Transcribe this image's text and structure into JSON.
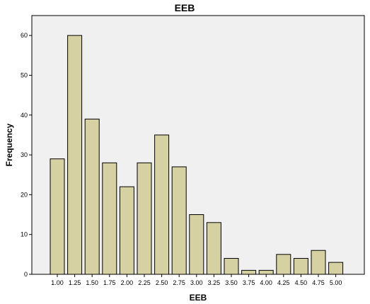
{
  "chart_data": {
    "type": "bar",
    "title": "EEB",
    "xlabel": "EEB",
    "ylabel": "Frequency",
    "categories": [
      "1.00",
      "1.25",
      "1.50",
      "1.75",
      "2.00",
      "2.25",
      "2.50",
      "2.75",
      "3.00",
      "3.25",
      "3.50",
      "3.75",
      "4.00",
      "4.25",
      "4.50",
      "4.75",
      "5.00"
    ],
    "values": [
      29,
      60,
      39,
      28,
      22,
      28,
      35,
      27,
      15,
      13,
      4,
      1,
      1,
      5,
      4,
      6,
      3
    ],
    "ylim": [
      0,
      65
    ],
    "yticks": [
      0,
      10,
      20,
      30,
      40,
      50,
      60
    ],
    "grid": false,
    "colors": {
      "bar_fill": "#d6d1a3",
      "bar_stroke": "#000000",
      "plot_background": "#f0f0f0",
      "page_background": "#ffffff"
    }
  }
}
